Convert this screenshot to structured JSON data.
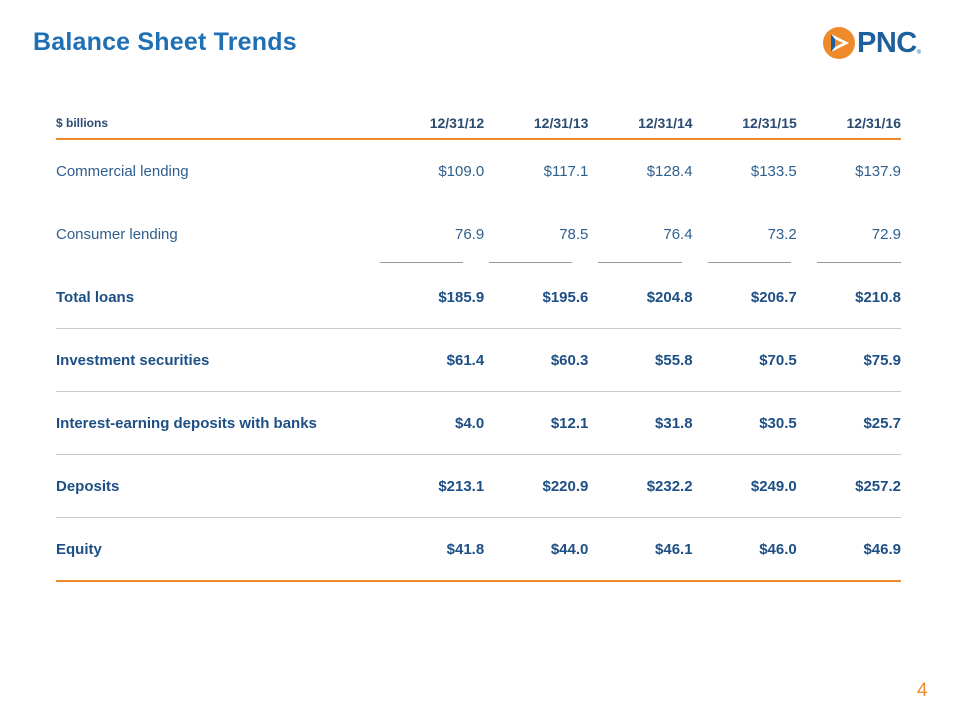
{
  "title": "Balance Sheet Trends",
  "logo": {
    "text": "PNC",
    "registered": "®",
    "icon": "pnc-logo-mark-icon",
    "orange": "#ef8a2a",
    "blue": "#1f5f9b"
  },
  "table": {
    "unit_label": "$ billions",
    "columns": [
      "12/31/12",
      "12/31/13",
      "12/31/14",
      "12/31/15",
      "12/31/16"
    ],
    "rows": [
      {
        "label": "Commercial lending",
        "values": [
          "$109.0",
          "$117.1",
          "$128.4",
          "$133.5",
          "$137.9"
        ]
      },
      {
        "label": "Consumer lending",
        "values": [
          "76.9",
          "78.5",
          "76.4",
          "73.2",
          "72.9"
        ]
      },
      {
        "label": "Total loans",
        "values": [
          "$185.9",
          "$195.6",
          "$204.8",
          "$206.7",
          "$210.8"
        ]
      },
      {
        "label": "Investment securities",
        "values": [
          "$61.4",
          "$60.3",
          "$55.8",
          "$70.5",
          "$75.9"
        ]
      },
      {
        "label": "Interest-earning deposits with banks",
        "values": [
          "$4.0",
          "$12.1",
          "$31.8",
          "$30.5",
          "$25.7"
        ]
      },
      {
        "label": "Deposits",
        "values": [
          "$213.1",
          "$220.9",
          "$232.2",
          "$249.0",
          "$257.2"
        ]
      },
      {
        "label": "Equity",
        "values": [
          "$41.8",
          "$44.0",
          "$46.1",
          "$46.0",
          "$46.9"
        ]
      }
    ]
  },
  "page_number": "4",
  "colors": {
    "title": "#1f6fb5",
    "accent_orange": "#ef8a2a",
    "text_blue": "#1d4f85"
  }
}
